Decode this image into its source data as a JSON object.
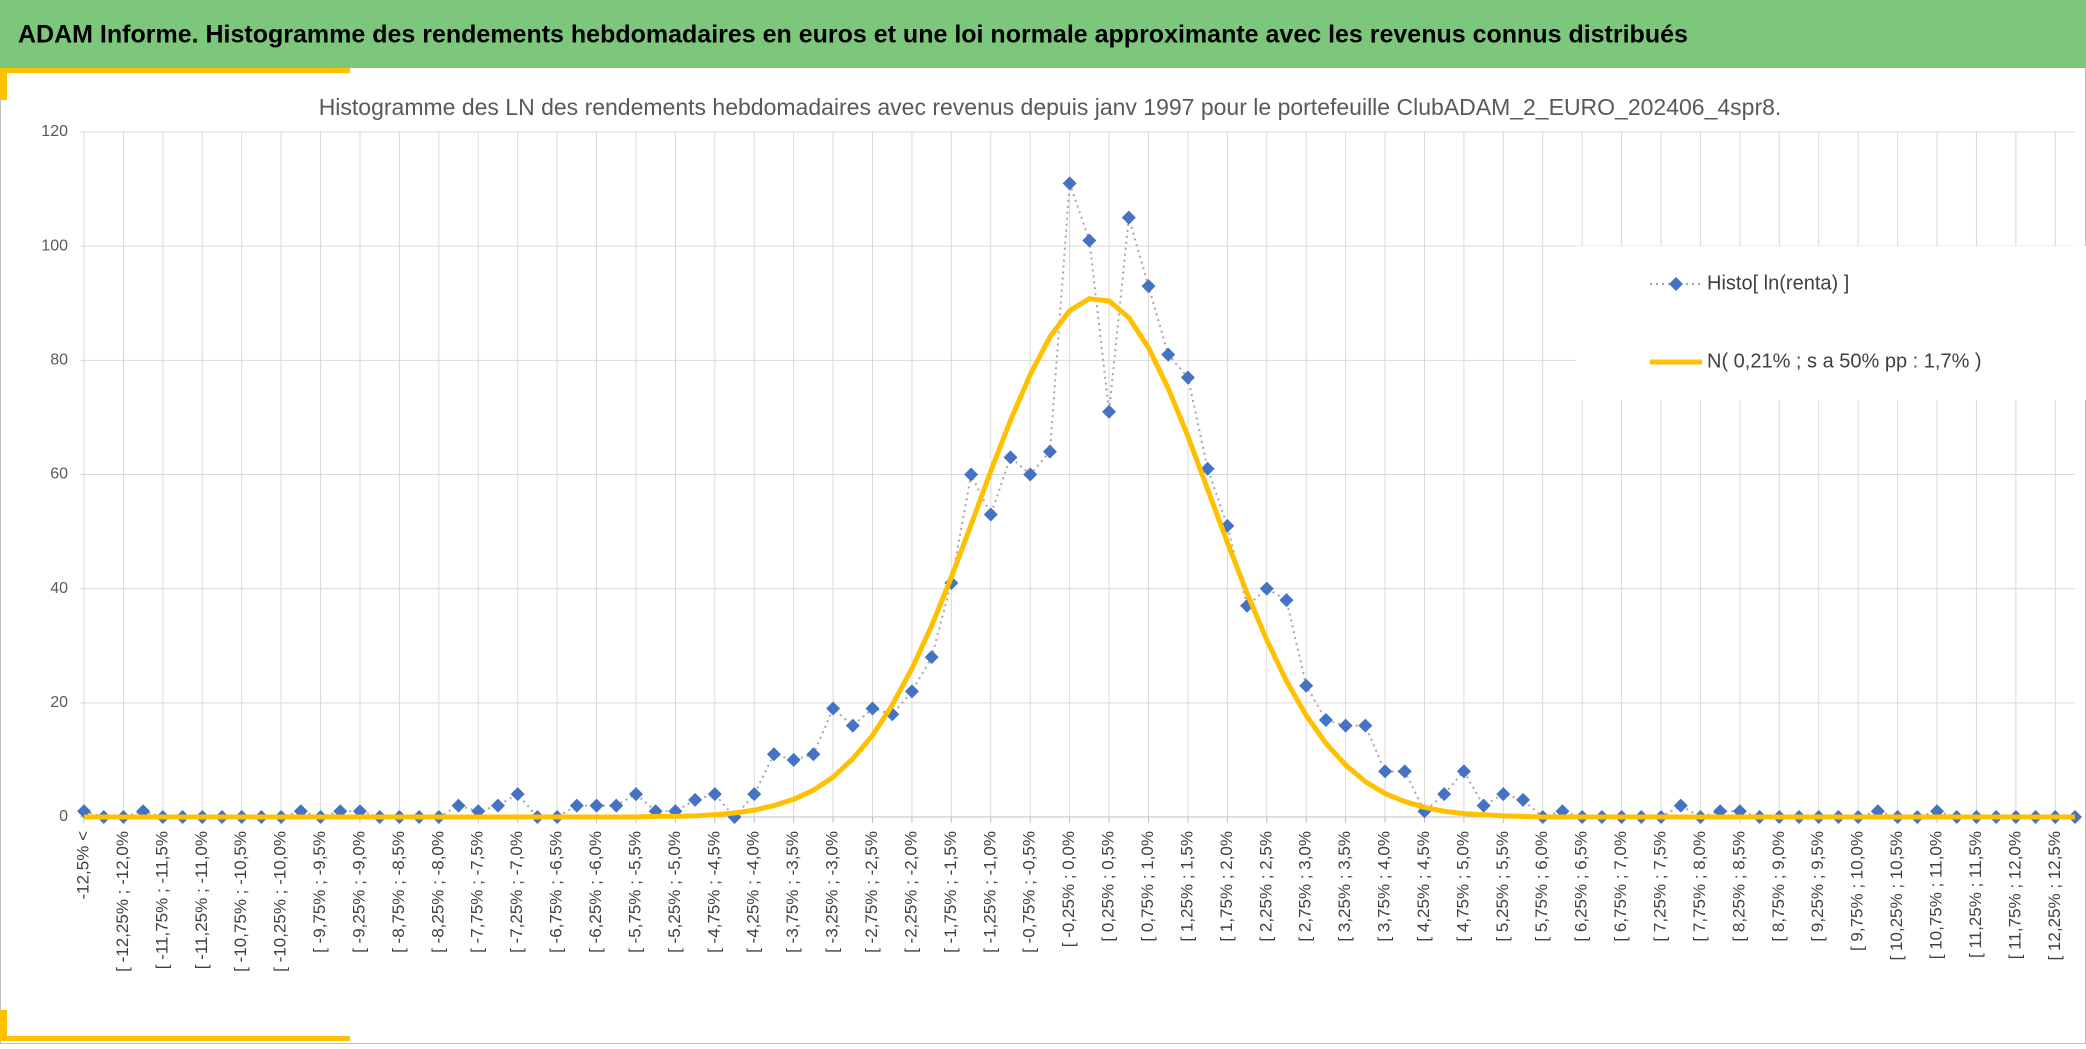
{
  "header": {
    "title": "ADAM Informe. Histogramme des rendements hebdomadaires en euros et une loi normale approximante avec les revenus connus distribués"
  },
  "chart_data": {
    "type": "line",
    "title": "Histogramme des LN des rendements hebdomadaires avec revenus depuis janv 1997 pour le portefeuille ClubADAM_2_EURO_202406_4spr8.",
    "categories": [
      "-12,5% <",
      null,
      "[ -12,25% ; -12,0%",
      null,
      "[ -11,75% ; -11,5%",
      null,
      "[ -11,25% ; -11,0%",
      null,
      "[ -10,75% ; -10,5%",
      null,
      "[ -10,25% ; -10,0%",
      null,
      "[ -9,75% ; -9,5%",
      null,
      "[ -9,25% ; -9,0%",
      null,
      "[ -8,75% ; -8,5%",
      null,
      "[ -8,25% ; -8,0%",
      null,
      "[ -7,75% ; -7,5%",
      null,
      "[ -7,25% ; -7,0%",
      null,
      "[ -6,75% ; -6,5%",
      null,
      "[ -6,25% ; -6,0%",
      null,
      "[ -5,75% ; -5,5%",
      null,
      "[ -5,25% ; -5,0%",
      null,
      "[ -4,75% ; -4,5%",
      null,
      "[ -4,25% ; -4,0%",
      null,
      "[ -3,75% ; -3,5%",
      null,
      "[ -3,25% ; -3,0%",
      null,
      "[ -2,75% ; -2,5%",
      null,
      "[ -2,25% ; -2,0%",
      null,
      "[ -1,75% ; -1,5%",
      null,
      "[ -1,25% ; -1,0%",
      null,
      "[ -0,75% ; -0,5%",
      null,
      "[ -0,25% ; 0,0%",
      null,
      "[ 0,25% ; 0,5%",
      null,
      "[ 0,75% ; 1,0%",
      null,
      "[ 1,25% ; 1,5%",
      null,
      "[ 1,75% ; 2,0%",
      null,
      "[ 2,25% ; 2,5%",
      null,
      "[ 2,75% ; 3,0%",
      null,
      "[ 3,25% ; 3,5%",
      null,
      "[ 3,75% ; 4,0%",
      null,
      "[ 4,25% ; 4,5%",
      null,
      "[ 4,75% ; 5,0%",
      null,
      "[ 5,25% ; 5,5%",
      null,
      "[ 5,75% ; 6,0%",
      null,
      "[ 6,25% ; 6,5%",
      null,
      "[ 6,75% ; 7,0%",
      null,
      "[ 7,25% ; 7,5%",
      null,
      "[ 7,75% ; 8,0%",
      null,
      "[ 8,25% ; 8,5%",
      null,
      "[ 8,75% ; 9,0%",
      null,
      "[ 9,25% ; 9,5%",
      null,
      "[ 9,75% ; 10,0%",
      null,
      "[ 10,25% ; 10,5%",
      null,
      "[ 10,75% ; 11,0%",
      null,
      "[ 11,25% ; 11,5%",
      null,
      "[ 11,75% ; 12,0%",
      null,
      "[ 12,25% ; 12,5%",
      null
    ],
    "series": [
      {
        "name": "Histo[ ln(renta) ]",
        "color": "#4472c4",
        "line_color": "#a6a6a6",
        "marker": "diamond",
        "values": [
          1,
          0,
          0,
          1,
          0,
          0,
          0,
          0,
          0,
          0,
          0,
          1,
          0,
          1,
          1,
          0,
          0,
          0,
          0,
          2,
          1,
          2,
          4,
          0,
          0,
          2,
          2,
          2,
          4,
          1,
          1,
          3,
          4,
          0,
          4,
          11,
          10,
          11,
          19,
          16,
          19,
          18,
          22,
          28,
          41,
          60,
          53,
          63,
          60,
          64,
          111,
          101,
          71,
          105,
          93,
          81,
          77,
          61,
          51,
          37,
          40,
          38,
          23,
          17,
          16,
          16,
          8,
          8,
          1,
          4,
          8,
          2,
          4,
          3,
          0,
          1,
          0,
          0,
          0,
          0,
          0,
          2,
          0,
          1,
          1,
          0,
          0,
          0,
          0,
          0,
          0,
          1,
          0,
          0,
          1,
          0,
          0,
          0,
          0,
          0,
          0,
          0
        ]
      },
      {
        "name": "N( 0,21% ; s a 50% pp : 1,7% )",
        "color": "#ffc000",
        "marker": "none",
        "values": [
          0,
          0,
          0,
          0,
          0,
          0,
          0,
          0,
          0,
          0,
          0,
          0,
          0,
          0,
          0,
          0,
          0,
          0,
          0,
          0,
          0,
          0,
          0,
          0,
          0,
          0,
          0,
          0,
          0,
          0.1,
          0.1,
          0.2,
          0.4,
          0.7,
          1.2,
          2.0,
          3.1,
          4.7,
          7.0,
          10.2,
          14.3,
          19.6,
          26.0,
          33.5,
          42.0,
          51.2,
          60.6,
          69.5,
          77.5,
          84.1,
          88.7,
          90.8,
          90.4,
          87.5,
          82.2,
          75.1,
          66.7,
          57.4,
          48.1,
          39.2,
          31.0,
          23.8,
          17.8,
          12.9,
          9.1,
          6.2,
          4.1,
          2.7,
          1.7,
          1.0,
          0.6,
          0.4,
          0.2,
          0.1,
          0,
          0,
          0,
          0,
          0,
          0,
          0,
          0,
          0,
          0,
          0,
          0,
          0,
          0,
          0,
          0,
          0,
          0,
          0,
          0,
          0,
          0,
          0,
          0,
          0,
          0,
          0,
          0
        ]
      }
    ],
    "ylim": [
      0,
      120
    ],
    "yticks": [
      0,
      20,
      40,
      60,
      80,
      100,
      120
    ],
    "grid": true,
    "legend": "right"
  }
}
